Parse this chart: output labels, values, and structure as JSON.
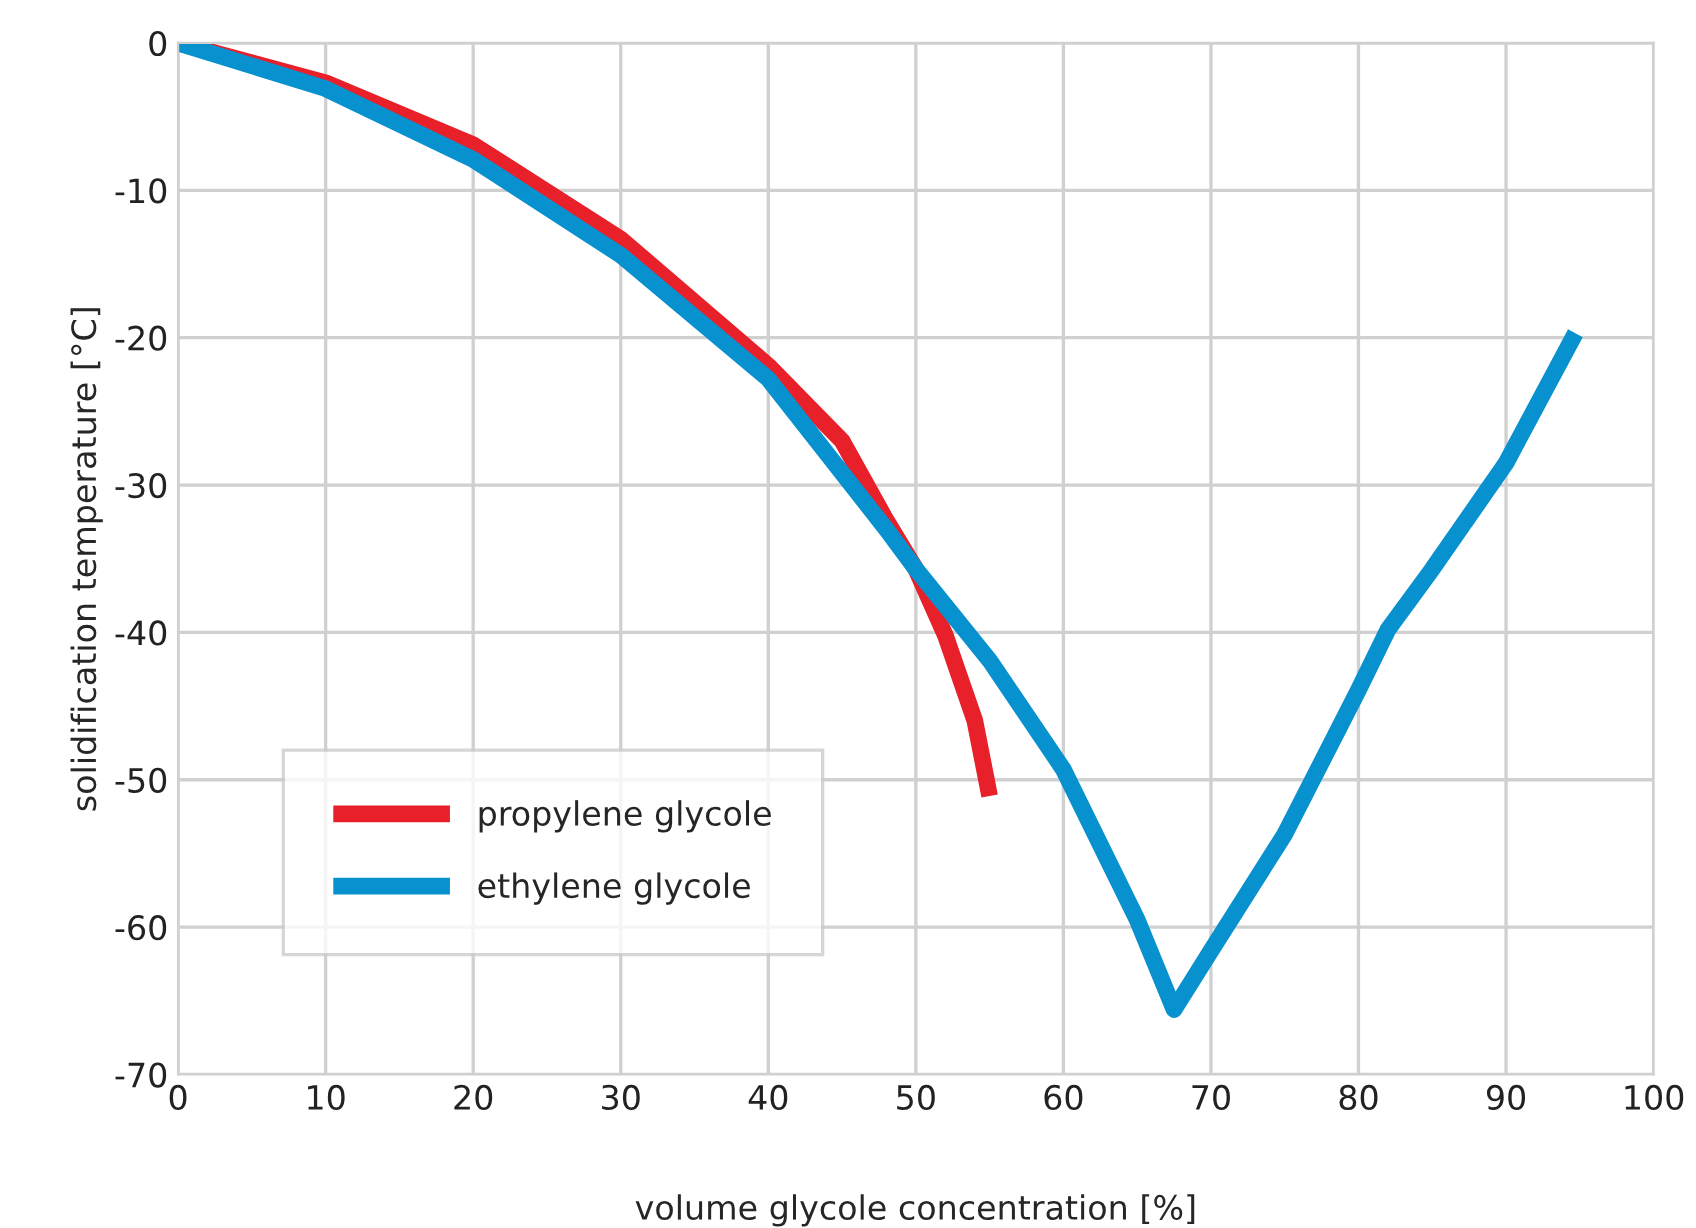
{
  "chart_data": {
    "type": "line",
    "xlabel": "volume glycole concentration [%]",
    "ylabel": "solidification temperature [°C]",
    "xlim": [
      0,
      100
    ],
    "ylim": [
      -70,
      0
    ],
    "xticks": [
      0,
      10,
      20,
      30,
      40,
      50,
      60,
      70,
      80,
      90,
      100
    ],
    "yticks": [
      -70,
      -60,
      -50,
      -40,
      -30,
      -20,
      -10,
      0
    ],
    "grid": true,
    "legend": "lower left",
    "line_style": "solid",
    "marker": "none",
    "series": [
      {
        "name": "propylene glycole",
        "color": "#e8202a",
        "x": [
          0,
          10,
          20,
          30,
          40,
          45,
          48,
          50,
          52,
          54,
          55
        ],
        "values": [
          0,
          -2.7,
          -6.9,
          -13.3,
          -21.9,
          -27,
          -32.4,
          -35.7,
          -40.2,
          -46,
          -51.1
        ]
      },
      {
        "name": "ethylene glycole",
        "color": "#0891cf",
        "x": [
          0,
          10,
          20,
          30,
          40,
          48,
          50,
          55,
          60,
          65,
          67.5,
          70,
          75,
          80,
          82,
          85,
          90,
          94.7
        ],
        "values": [
          0,
          -3.1,
          -7.9,
          -14.4,
          -22.8,
          -33,
          -35.7,
          -41.9,
          -49.3,
          -59.5,
          -65.6,
          -61.6,
          -53.7,
          -43.9,
          -39.8,
          -35.7,
          -28.5,
          -19.7
        ]
      }
    ]
  }
}
